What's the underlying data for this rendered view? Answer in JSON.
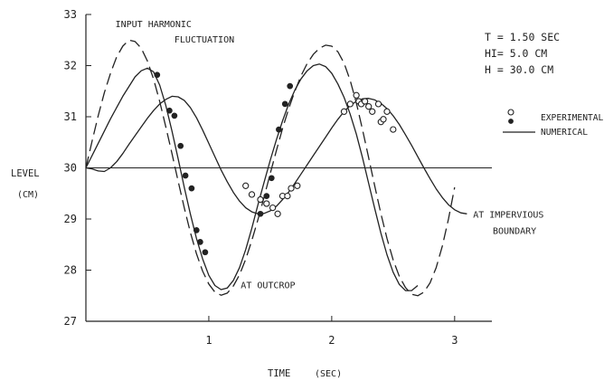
{
  "chart_data": {
    "type": "line",
    "xlabel": "TIME",
    "xlabel_unit": "(SEC)",
    "ylabel": "LEVEL",
    "ylabel_unit": "(CM)",
    "xlim": [
      0,
      3.2
    ],
    "ylim": [
      27,
      33
    ],
    "x_ticks": [
      {
        "value": 1,
        "label": "1"
      },
      {
        "value": 2,
        "label": "2"
      },
      {
        "value": 3,
        "label": "3"
      }
    ],
    "y_ticks": [
      {
        "value": 27,
        "label": "27"
      },
      {
        "value": 28,
        "label": "28"
      },
      {
        "value": 29,
        "label": "29"
      },
      {
        "value": 30,
        "label": "30"
      },
      {
        "value": 31,
        "label": "31"
      },
      {
        "value": 32,
        "label": "32"
      },
      {
        "value": 33,
        "label": "33"
      }
    ],
    "reference_line": 30,
    "parameters": [
      "T = 1.50 SEC",
      "HI= 5.0 CM",
      "H = 30.0 CM"
    ],
    "legend": [
      {
        "marker": "open-circle",
        "label": "EXPERIMENTAL"
      },
      {
        "marker": "filled-circle",
        "label": ""
      },
      {
        "marker": "solid-line",
        "label": "NUMERICAL"
      }
    ],
    "annotations": [
      {
        "text": "INPUT HARMONIC",
        "x": 0.24,
        "y": 32.75
      },
      {
        "text": "FLUCTUATION",
        "x": 0.72,
        "y": 32.45
      },
      {
        "text": "AT IMPERVIOUS",
        "x": 3.15,
        "y": 29.03
      },
      {
        "text": "BOUNDARY",
        "x": 3.31,
        "y": 28.71
      },
      {
        "text": "AT OUTCROP",
        "x": 1.26,
        "y": 27.65
      }
    ],
    "series": [
      {
        "style": "dashed",
        "x": [
          0,
          0.05,
          0.1,
          0.15,
          0.2,
          0.25,
          0.3,
          0.35,
          0.4,
          0.45,
          0.5,
          0.55,
          0.6,
          0.65,
          0.7,
          0.75,
          0.8,
          0.85,
          0.9,
          0.95,
          1,
          1.05,
          1.1,
          1.15,
          1.2,
          1.25,
          1.3,
          1.35,
          1.4,
          1.45,
          1.5,
          1.55,
          1.6,
          1.65,
          1.7,
          1.75,
          1.8,
          1.85,
          1.9,
          1.95,
          2,
          2.05,
          2.1,
          2.15,
          2.2,
          2.25,
          2.3,
          2.35,
          2.4,
          2.45,
          2.5,
          2.55,
          2.6,
          2.65,
          2.7,
          2.75,
          2.8,
          2.85,
          2.9,
          2.95,
          3
        ],
        "y": [
          30,
          30.52,
          31.02,
          31.47,
          31.85,
          32.17,
          32.38,
          32.5,
          32.47,
          32.34,
          32.09,
          31.74,
          31.3,
          30.8,
          30.28,
          29.74,
          29.22,
          28.74,
          28.32,
          27.98,
          27.73,
          27.57,
          27.51,
          27.55,
          27.69,
          27.91,
          28.21,
          28.58,
          28.99,
          29.43,
          29.89,
          30.34,
          30.77,
          31.16,
          31.5,
          31.8,
          32.04,
          32.22,
          32.34,
          32.4,
          32.38,
          32.27,
          32.05,
          31.71,
          31.27,
          30.75,
          30.2,
          29.64,
          29.1,
          28.62,
          28.2,
          27.88,
          27.66,
          27.53,
          27.5,
          27.57,
          27.75,
          28.05,
          28.47,
          29,
          29.62
        ]
      },
      {
        "style": "solid",
        "name": "AT OUTCROP",
        "x": [
          0,
          0.1,
          0.2,
          0.3,
          0.4,
          0.45,
          0.5,
          0.55,
          0.6,
          0.65,
          0.7,
          0.75,
          0.8,
          0.85,
          0.9,
          0.95,
          1,
          1.05,
          1.1,
          1.15,
          1.2,
          1.25,
          1.3,
          1.35,
          1.4,
          1.45,
          1.5,
          1.55,
          1.6,
          1.65,
          1.7,
          1.75,
          1.8,
          1.85,
          1.9,
          1.95,
          2,
          2.05,
          2.1,
          2.15,
          2.2,
          2.25,
          2.3,
          2.35,
          2.4,
          2.45,
          2.5,
          2.55,
          2.6,
          2.65,
          2.7
        ],
        "y": [
          30,
          30.48,
          30.96,
          31.4,
          31.78,
          31.9,
          31.95,
          31.88,
          31.62,
          31.22,
          30.72,
          30.18,
          29.62,
          29.1,
          28.62,
          28.22,
          27.9,
          27.7,
          27.62,
          27.65,
          27.8,
          28.05,
          28.4,
          28.82,
          29.28,
          29.72,
          30.15,
          30.55,
          30.92,
          31.25,
          31.52,
          31.74,
          31.9,
          32.0,
          32.03,
          31.98,
          31.85,
          31.64,
          31.38,
          31.05,
          30.66,
          30.2,
          29.7,
          29.2,
          28.72,
          28.3,
          27.96,
          27.72,
          27.6,
          27.6,
          27.7
        ]
      },
      {
        "style": "solid",
        "name": "AT IMPERVIOUS BOUNDARY",
        "x": [
          0,
          0.05,
          0.1,
          0.15,
          0.2,
          0.25,
          0.3,
          0.35,
          0.4,
          0.45,
          0.5,
          0.55,
          0.6,
          0.65,
          0.7,
          0.75,
          0.8,
          0.85,
          0.9,
          0.95,
          1,
          1.05,
          1.1,
          1.15,
          1.2,
          1.25,
          1.3,
          1.35,
          1.4,
          1.45,
          1.5,
          1.55,
          1.6,
          1.65,
          1.7,
          1.75,
          1.8,
          1.85,
          1.9,
          1.95,
          2,
          2.05,
          2.1,
          2.15,
          2.2,
          2.25,
          2.3,
          2.35,
          2.4,
          2.45,
          2.5,
          2.55,
          2.6,
          2.65,
          2.7,
          2.75,
          2.8,
          2.85,
          2.9,
          2.95,
          3,
          3.05,
          3.1
        ],
        "y": [
          30,
          29.98,
          29.94,
          29.93,
          30.0,
          30.12,
          30.28,
          30.46,
          30.63,
          30.8,
          30.97,
          31.12,
          31.25,
          31.34,
          31.4,
          31.39,
          31.32,
          31.18,
          30.98,
          30.74,
          30.48,
          30.22,
          29.96,
          29.73,
          29.52,
          29.35,
          29.22,
          29.14,
          29.1,
          29.11,
          29.16,
          29.25,
          29.38,
          29.53,
          29.7,
          29.88,
          30.06,
          30.24,
          30.42,
          30.6,
          30.78,
          30.95,
          31.1,
          31.22,
          31.3,
          31.35,
          31.36,
          31.33,
          31.26,
          31.16,
          31.02,
          30.85,
          30.65,
          30.44,
          30.22,
          30.0,
          29.79,
          29.59,
          29.42,
          29.28,
          29.18,
          29.12,
          29.1
        ]
      },
      {
        "style": "filled-markers",
        "x": [
          0.58,
          0.68,
          0.72,
          0.77,
          0.81,
          0.86,
          0.9,
          0.93,
          0.97,
          1.42,
          1.47,
          1.51,
          1.57,
          1.62,
          1.66
        ],
        "y": [
          31.82,
          31.12,
          31.02,
          30.43,
          29.85,
          29.6,
          28.78,
          28.55,
          28.35,
          29.1,
          29.45,
          29.8,
          30.75,
          31.25,
          31.6
        ]
      },
      {
        "style": "open-markers",
        "x": [
          1.3,
          1.35,
          1.42,
          1.47,
          1.52,
          1.56,
          1.6,
          1.64,
          1.67,
          1.72,
          2.1,
          2.15,
          2.2,
          2.22,
          2.24,
          2.27,
          2.3,
          2.33,
          2.38,
          2.4,
          2.42,
          2.45,
          2.5
        ],
        "y": [
          29.65,
          29.48,
          29.38,
          29.3,
          29.22,
          29.1,
          29.45,
          29.45,
          29.6,
          29.65,
          31.1,
          31.25,
          31.42,
          31.3,
          31.25,
          31.3,
          31.2,
          31.1,
          31.25,
          30.9,
          30.95,
          31.1,
          30.75
        ]
      }
    ]
  }
}
